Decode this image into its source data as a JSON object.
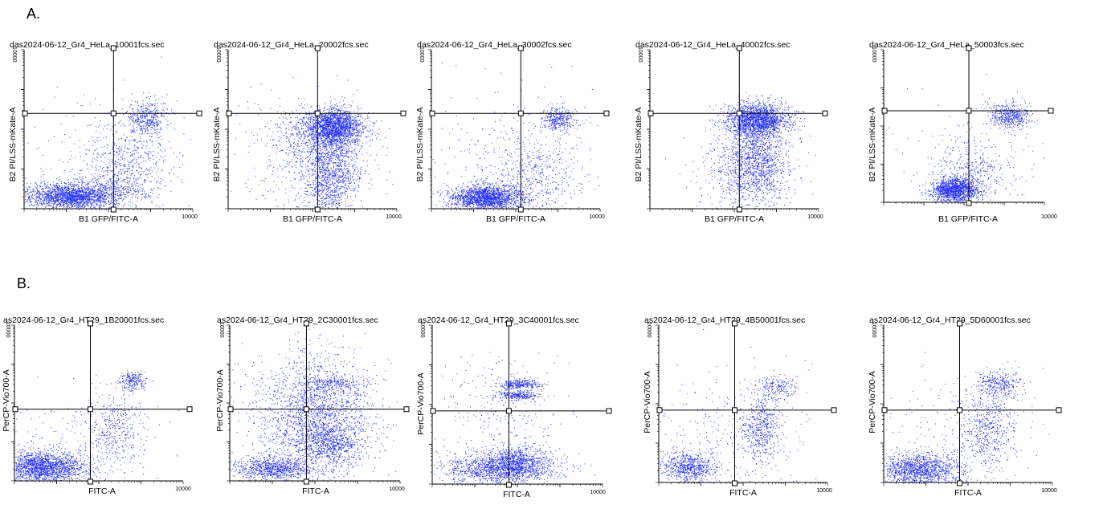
{
  "panel_labels": {
    "a": "A.",
    "b": "B."
  },
  "colors": {
    "points": "#1f2bff",
    "axes": "#000000",
    "background": "#ffffff"
  },
  "chart_data": [
    {
      "type": "scatter",
      "title": "das2024-06-12_Gr4_HeLa_10001fcs.sec",
      "xlabel": "B1 GFP/FITC-A",
      "ylabel": "B2 PI/LSS-mKate-A",
      "x_tick_top": "10000",
      "y_tick_top": "10000",
      "quadrant_gate": [
        0.53,
        0.6
      ],
      "populations": [
        {
          "cx": 0.27,
          "cy": 0.08,
          "sx": 0.13,
          "sy": 0.04,
          "n": 1900
        },
        {
          "cx": 0.52,
          "cy": 0.13,
          "sx": 0.11,
          "sy": 0.06,
          "n": 300
        },
        {
          "cx": 0.73,
          "cy": 0.57,
          "sx": 0.06,
          "sy": 0.06,
          "n": 400
        },
        {
          "cx": 0.62,
          "cy": 0.3,
          "sx": 0.13,
          "sy": 0.14,
          "n": 500
        },
        {
          "cx": 0.45,
          "cy": 0.3,
          "sx": 0.28,
          "sy": 0.25,
          "n": 220
        }
      ]
    },
    {
      "type": "scatter",
      "title": "das2024-06-12_Gr4_HeLa_20002fcs.sec",
      "xlabel": "B1 GFP/FITC-A",
      "ylabel": "B2 PI/LSS-mKate-A",
      "x_tick_top": "10000",
      "y_tick_top": "10000",
      "quadrant_gate": [
        0.53,
        0.6
      ],
      "populations": [
        {
          "cx": 0.63,
          "cy": 0.52,
          "sx": 0.08,
          "sy": 0.06,
          "n": 1500
        },
        {
          "cx": 0.55,
          "cy": 0.48,
          "sx": 0.13,
          "sy": 0.07,
          "n": 600
        },
        {
          "cx": 0.6,
          "cy": 0.22,
          "sx": 0.09,
          "sy": 0.15,
          "n": 1300
        },
        {
          "cx": 0.48,
          "cy": 0.3,
          "sx": 0.2,
          "sy": 0.2,
          "n": 400
        }
      ]
    },
    {
      "type": "scatter",
      "title": "das2024-06-12_Gr4_HeLa_30002fcs.sec",
      "xlabel": "B1 GFP/FITC-A",
      "ylabel": "B2 PI/LSS-mKate-A",
      "x_tick_top": "10000",
      "y_tick_top": "10000",
      "quadrant_gate": [
        0.53,
        0.6
      ],
      "populations": [
        {
          "cx": 0.32,
          "cy": 0.07,
          "sx": 0.11,
          "sy": 0.04,
          "n": 1800
        },
        {
          "cx": 0.75,
          "cy": 0.57,
          "sx": 0.05,
          "sy": 0.04,
          "n": 350
        },
        {
          "cx": 0.6,
          "cy": 0.2,
          "sx": 0.15,
          "sy": 0.13,
          "n": 500
        },
        {
          "cx": 0.5,
          "cy": 0.35,
          "sx": 0.28,
          "sy": 0.25,
          "n": 250
        }
      ]
    },
    {
      "type": "scatter",
      "title": "das2024-06-12_Gr4_HeLa_40002fcs.sec",
      "xlabel": "B1 GFP/FITC-A",
      "ylabel": "B2 PI/LSS-mKate-A",
      "x_tick_top": "10000",
      "y_tick_top": "10000",
      "quadrant_gate": [
        0.53,
        0.6
      ],
      "populations": [
        {
          "cx": 0.64,
          "cy": 0.56,
          "sx": 0.09,
          "sy": 0.05,
          "n": 1800
        },
        {
          "cx": 0.62,
          "cy": 0.3,
          "sx": 0.1,
          "sy": 0.13,
          "n": 1300
        },
        {
          "cx": 0.55,
          "cy": 0.2,
          "sx": 0.15,
          "sy": 0.15,
          "n": 300
        }
      ]
    },
    {
      "type": "scatter",
      "title": "das2024-06-12_Gr4_HeLa_50003fcs.sec",
      "xlabel": "B1 GFP/FITC-A",
      "ylabel": "B2 PI/LSS-mKate-A",
      "x_tick_top": "10000",
      "y_tick_top": "10000",
      "quadrant_gate": [
        0.53,
        0.6
      ],
      "populations": [
        {
          "cx": 0.44,
          "cy": 0.08,
          "sx": 0.07,
          "sy": 0.04,
          "n": 1300
        },
        {
          "cx": 0.79,
          "cy": 0.57,
          "sx": 0.06,
          "sy": 0.04,
          "n": 450
        },
        {
          "cx": 0.55,
          "cy": 0.18,
          "sx": 0.1,
          "sy": 0.09,
          "n": 350
        },
        {
          "cx": 0.62,
          "cy": 0.35,
          "sx": 0.25,
          "sy": 0.2,
          "n": 200
        }
      ]
    },
    {
      "type": "scatter",
      "title": "as2024-06-12_Gr4_HT29_1B20001fcs.sec",
      "xlabel": "FITC-A",
      "ylabel": "PerCP-Vio700-A",
      "x_tick_top": "10000",
      "y_tick_top": "10000",
      "quadrant_gate": [
        0.45,
        0.46
      ],
      "populations": [
        {
          "cx": 0.17,
          "cy": 0.09,
          "sx": 0.13,
          "sy": 0.05,
          "n": 1800
        },
        {
          "cx": 0.7,
          "cy": 0.64,
          "sx": 0.04,
          "sy": 0.03,
          "n": 220
        },
        {
          "cx": 0.6,
          "cy": 0.35,
          "sx": 0.09,
          "sy": 0.12,
          "n": 350
        },
        {
          "cx": 0.35,
          "cy": 0.2,
          "sx": 0.25,
          "sy": 0.15,
          "n": 250
        }
      ]
    },
    {
      "type": "scatter",
      "title": "as2024-06-12_Gr4_HT29_2C30001fcs.sec",
      "xlabel": "FITC-A",
      "ylabel": "PerCP-Vio700-A",
      "x_tick_top": "10000",
      "y_tick_top": "10000",
      "quadrant_gate": [
        0.45,
        0.46
      ],
      "populations": [
        {
          "cx": 0.25,
          "cy": 0.08,
          "sx": 0.12,
          "sy": 0.04,
          "n": 900
        },
        {
          "cx": 0.58,
          "cy": 0.24,
          "sx": 0.09,
          "sy": 0.07,
          "n": 600
        },
        {
          "cx": 0.5,
          "cy": 0.42,
          "sx": 0.17,
          "sy": 0.2,
          "n": 2200
        },
        {
          "cx": 0.62,
          "cy": 0.63,
          "sx": 0.09,
          "sy": 0.02,
          "n": 200
        }
      ]
    },
    {
      "type": "scatter",
      "title": "as2024-06-12_Gr4_HT29_3C40001fcs.sec",
      "xlabel": "FITC-A",
      "ylabel": "PerCP-Vio700-A",
      "x_tick_top": "10000",
      "y_tick_top": "10000",
      "quadrant_gate": [
        0.45,
        0.46
      ],
      "populations": [
        {
          "cx": 0.4,
          "cy": 0.1,
          "sx": 0.16,
          "sy": 0.05,
          "n": 1400
        },
        {
          "cx": 0.5,
          "cy": 0.14,
          "sx": 0.08,
          "sy": 0.05,
          "n": 500
        },
        {
          "cx": 0.51,
          "cy": 0.63,
          "sx": 0.06,
          "sy": 0.015,
          "n": 300
        },
        {
          "cx": 0.51,
          "cy": 0.56,
          "sx": 0.06,
          "sy": 0.015,
          "n": 250
        },
        {
          "cx": 0.4,
          "cy": 0.4,
          "sx": 0.2,
          "sy": 0.22,
          "n": 300
        }
      ]
    },
    {
      "type": "scatter",
      "title": "as2024-06-12_Gr4_HT29_4B50001fcs.sec",
      "xlabel": "FITC-A",
      "ylabel": "PerCP-Vio700-A",
      "x_tick_top": "10000",
      "y_tick_top": "10000",
      "quadrant_gate": [
        0.45,
        0.46
      ],
      "populations": [
        {
          "cx": 0.17,
          "cy": 0.1,
          "sx": 0.08,
          "sy": 0.05,
          "n": 700
        },
        {
          "cx": 0.7,
          "cy": 0.6,
          "sx": 0.06,
          "sy": 0.04,
          "n": 200
        },
        {
          "cx": 0.6,
          "cy": 0.35,
          "sx": 0.06,
          "sy": 0.1,
          "n": 450
        },
        {
          "cx": 0.45,
          "cy": 0.28,
          "sx": 0.22,
          "sy": 0.22,
          "n": 350
        }
      ]
    },
    {
      "type": "scatter",
      "title": "as2024-06-12_Gr4_HT29_5D60001fcs.sec",
      "xlabel": "FITC-A",
      "ylabel": "PerCP-Vio700-A",
      "x_tick_top": "10000",
      "y_tick_top": "10000",
      "quadrant_gate": [
        0.45,
        0.46
      ],
      "populations": [
        {
          "cx": 0.2,
          "cy": 0.08,
          "sx": 0.12,
          "sy": 0.05,
          "n": 1300
        },
        {
          "cx": 0.68,
          "cy": 0.63,
          "sx": 0.07,
          "sy": 0.04,
          "n": 300
        },
        {
          "cx": 0.62,
          "cy": 0.35,
          "sx": 0.08,
          "sy": 0.12,
          "n": 500
        },
        {
          "cx": 0.4,
          "cy": 0.25,
          "sx": 0.25,
          "sy": 0.22,
          "n": 300
        }
      ]
    }
  ]
}
